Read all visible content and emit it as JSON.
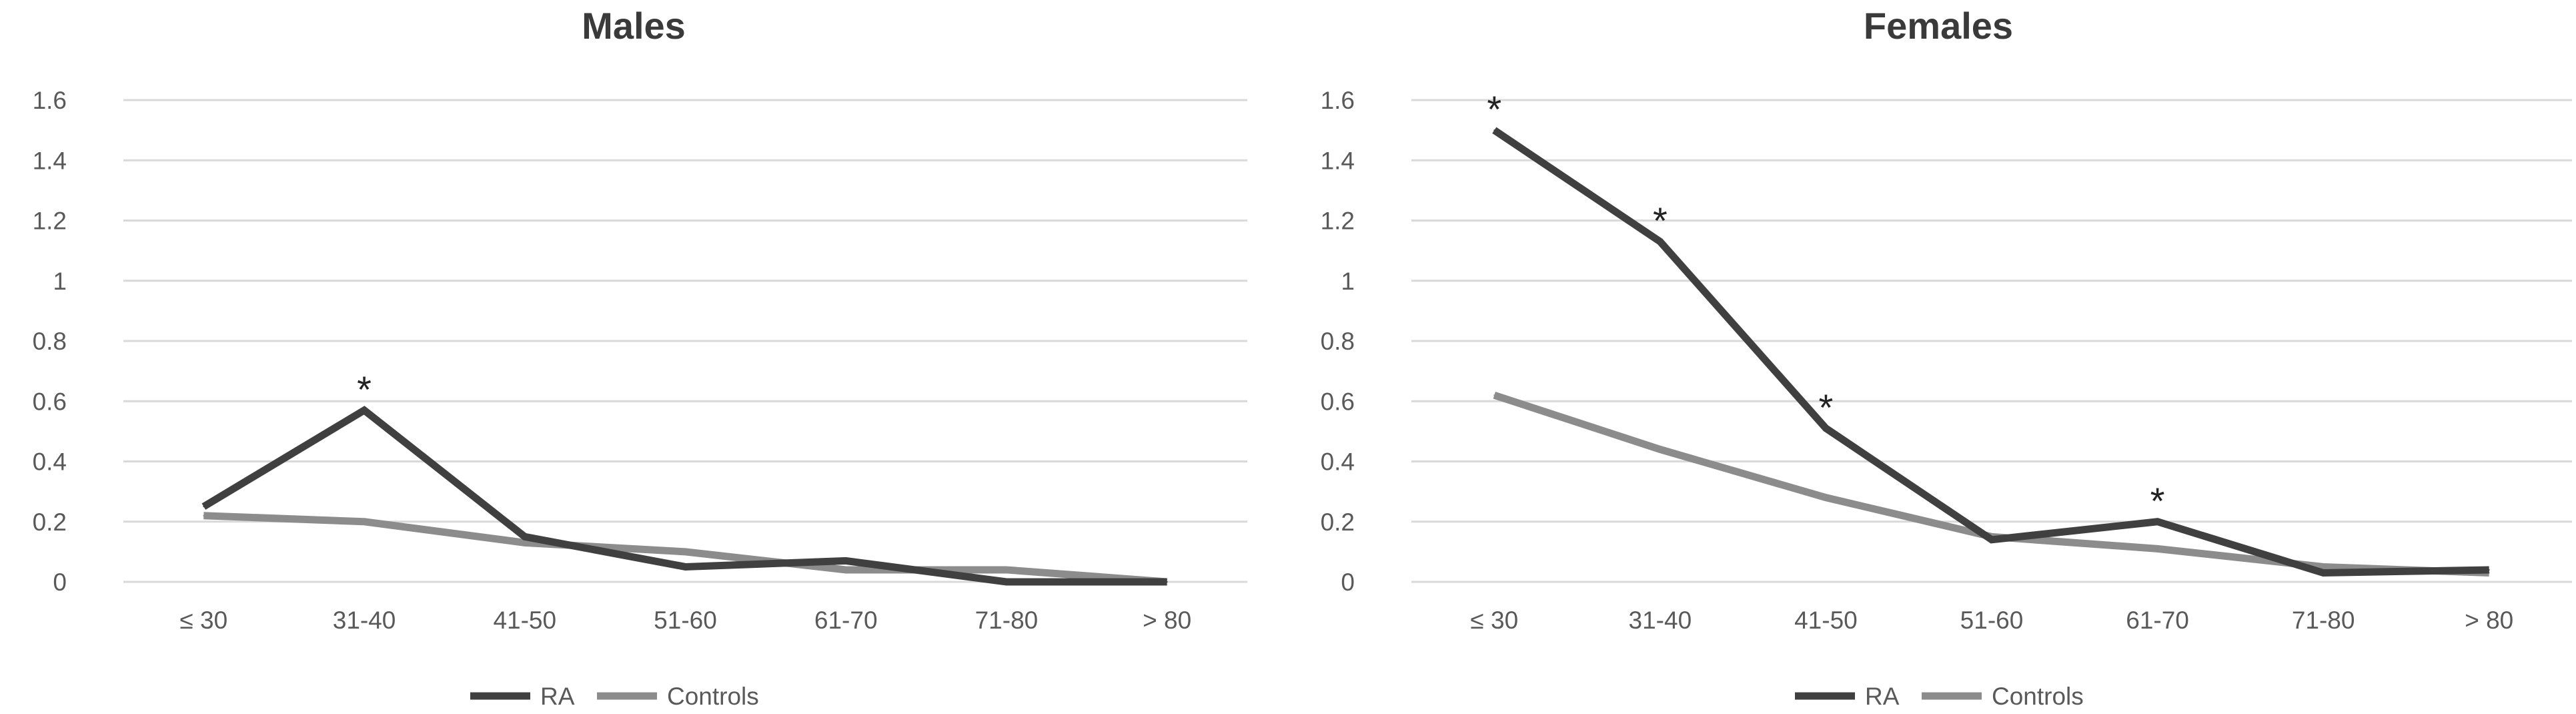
{
  "colors": {
    "RA": "#404040",
    "Controls": "#8c8c8c",
    "grid": "#d9d9d9"
  },
  "legend": {
    "items": [
      "RA",
      "Controls"
    ]
  },
  "chart_data": [
    {
      "type": "line",
      "title": "Males",
      "categories": [
        "≤ 30",
        "31-40",
        "41-50",
        "51-60",
        "61-70",
        "71-80",
        "> 80"
      ],
      "ylim": [
        0,
        1.6
      ],
      "yticks": [
        "0",
        "0.2",
        "0.4",
        "0.6",
        "0.8",
        "1",
        "1.2",
        "1.4",
        "1.6"
      ],
      "grid": true,
      "legend_position": "bottom",
      "series": [
        {
          "name": "RA",
          "values": [
            0.25,
            0.57,
            0.15,
            0.05,
            0.07,
            0.0,
            0.0
          ]
        },
        {
          "name": "Controls",
          "values": [
            0.22,
            0.2,
            0.13,
            0.1,
            0.04,
            0.04,
            0.0
          ]
        }
      ],
      "annotations": [
        {
          "text": "*",
          "series": "RA",
          "index": 1
        }
      ]
    },
    {
      "type": "line",
      "title": "Females",
      "categories": [
        "≤ 30",
        "31-40",
        "41-50",
        "51-60",
        "61-70",
        "71-80",
        "> 80"
      ],
      "ylim": [
        0,
        1.6
      ],
      "yticks": [
        "0",
        "0.2",
        "0.4",
        "0.6",
        "0.8",
        "1",
        "1.2",
        "1.4",
        "1.6"
      ],
      "grid": true,
      "legend_position": "bottom",
      "series": [
        {
          "name": "RA",
          "values": [
            1.5,
            1.13,
            0.51,
            0.14,
            0.2,
            0.03,
            0.04
          ]
        },
        {
          "name": "Controls",
          "values": [
            0.62,
            0.44,
            0.28,
            0.15,
            0.11,
            0.05,
            0.03
          ]
        }
      ],
      "annotations": [
        {
          "text": "*",
          "series": "RA",
          "index": 0
        },
        {
          "text": "*",
          "series": "RA",
          "index": 1
        },
        {
          "text": "*",
          "series": "RA",
          "index": 2
        },
        {
          "text": "*",
          "series": "RA",
          "index": 4
        }
      ]
    }
  ]
}
